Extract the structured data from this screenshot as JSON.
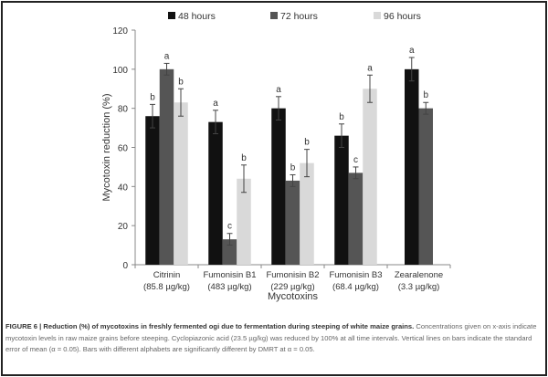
{
  "chart_data": {
    "type": "bar",
    "categories": [
      [
        "Citrinin",
        "(85.8 µg/kg)"
      ],
      [
        "Fumonisin B1",
        "(483 µg/kg)"
      ],
      [
        "Fumonisin B2",
        "(229 µg/kg)"
      ],
      [
        "Fumonisin B3",
        "(68.4 µg/kg)"
      ],
      [
        "Zearalenone",
        "(3.3 µg/kg)"
      ]
    ],
    "series": [
      {
        "name": "48 hours",
        "color": "#111111",
        "values": [
          76,
          73,
          80,
          66,
          100
        ],
        "errors": [
          6,
          6,
          6,
          6,
          6
        ],
        "letters": [
          "b",
          "a",
          "a",
          "b",
          "a"
        ]
      },
      {
        "name": "72 hours",
        "color": "#555555",
        "values": [
          100,
          13,
          43,
          47,
          80
        ],
        "errors": [
          3,
          3,
          3,
          3,
          3
        ],
        "letters": [
          "a",
          "c",
          "b",
          "c",
          "b"
        ]
      },
      {
        "name": "96 hours",
        "color": "#d9d9d9",
        "values": [
          83,
          44,
          52,
          90,
          null
        ],
        "errors": [
          7,
          7,
          7,
          7,
          null
        ],
        "letters": [
          "b",
          "b",
          "b",
          "a",
          null
        ]
      }
    ],
    "xlabel": "Mycotoxins",
    "ylabel": "Mycotoxin reduction (%)",
    "ylim": [
      0,
      120
    ],
    "yticks": [
      0,
      20,
      40,
      60,
      80,
      100,
      120
    ],
    "grid": false,
    "legend": "top"
  },
  "caption": {
    "bold": "FIGURE 6 | Reduction (%) of mycotoxins in freshly fermented ogi due to fermentation during steeping of white maize grains.",
    "text": " Concentrations given on x-axis indicate mycotoxin levels in raw maize grains before steeping. Cyclopiazonic acid (23.5 µg/kg) was reduced by 100% at all time intervals. Vertical lines on bars indicate the standard error of mean (α = 0.05). Bars with different alphabets are significantly different by DMRT at α = 0.05."
  }
}
